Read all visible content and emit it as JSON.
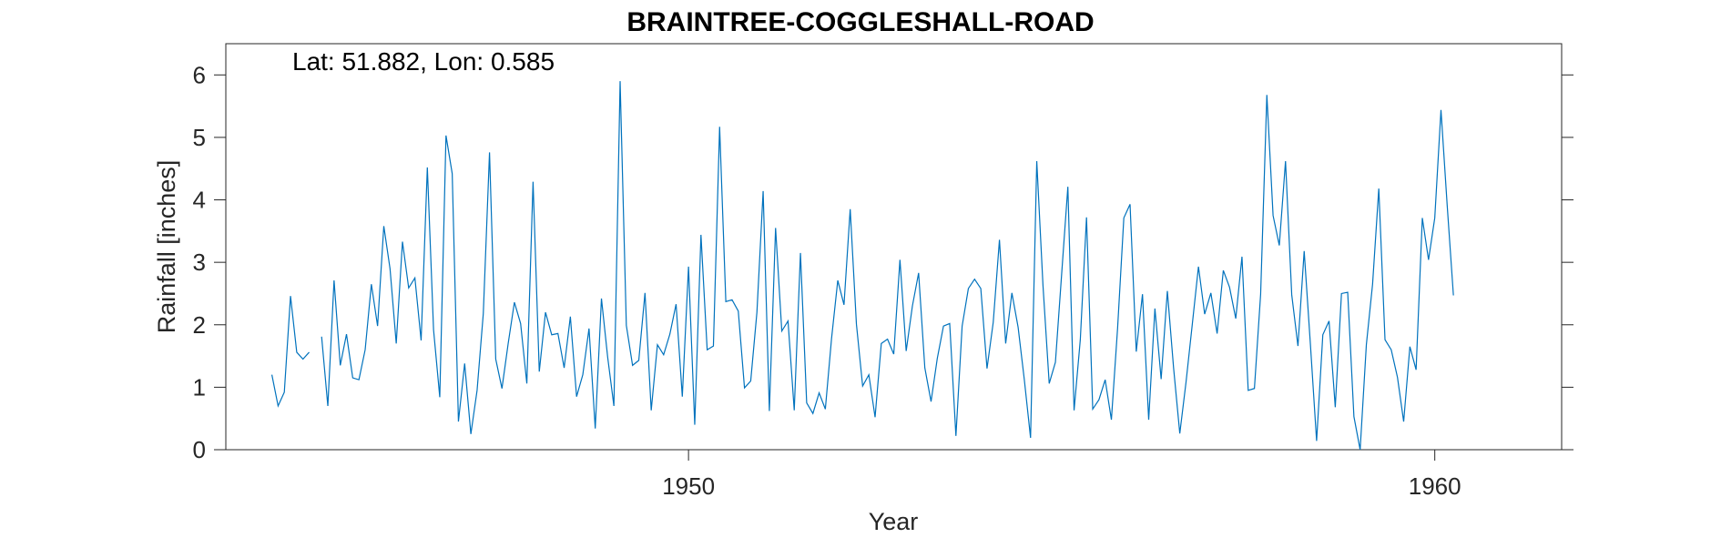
{
  "chart_data": {
    "type": "line",
    "title": "BRAINTREE-COGGLESHALL-ROAD",
    "annotation": "Lat: 51.882, Lon: 0.585",
    "xlabel": "Year",
    "ylabel": "Rainfall [inches]",
    "xlim": [
      1943.8,
      1961.7
    ],
    "ylim": [
      0,
      6.5
    ],
    "xticks": [
      1950,
      1960
    ],
    "yticks": [
      0,
      1,
      2,
      3,
      4,
      5,
      6
    ],
    "grid": false,
    "line_color": "#0072BD",
    "series": [
      {
        "start": 1944.417,
        "step": 0.08333,
        "values": [
          1.2,
          0.7,
          0.92,
          2.46,
          1.56,
          1.45,
          1.56,
          null,
          1.81,
          0.7,
          2.71,
          1.35,
          1.85,
          1.15,
          1.12,
          1.6,
          2.65,
          1.98,
          3.58,
          2.9,
          1.7,
          3.33,
          2.59,
          2.75,
          1.75,
          4.52,
          1.92,
          0.84,
          5.03,
          4.42,
          0.45,
          1.38,
          0.25,
          0.95,
          2.18,
          4.76,
          1.45,
          0.98,
          1.7,
          2.36,
          2.02,
          1.06,
          4.29,
          1.25,
          2.2,
          1.84,
          1.86,
          1.31,
          2.13,
          0.85,
          1.2,
          1.94,
          0.34,
          2.42,
          1.48,
          0.7,
          5.9,
          1.99,
          1.35,
          1.43,
          2.51,
          0.63,
          1.68,
          1.52,
          1.85,
          2.33,
          0.85,
          2.93,
          0.4,
          3.44,
          1.6,
          1.66,
          5.17,
          2.37,
          2.4,
          2.22,
          0.99,
          1.1,
          2.2,
          4.14,
          0.62,
          3.55,
          1.9,
          2.06,
          0.63,
          3.15,
          0.75,
          0.58,
          0.91,
          0.65,
          1.78,
          2.71,
          2.32,
          3.85,
          2.01,
          1.02,
          1.2,
          0.52,
          1.7,
          1.77,
          1.53,
          3.04,
          1.58,
          2.3,
          2.83,
          1.31,
          0.77,
          1.46,
          1.98,
          2.02,
          0.22,
          1.98,
          2.58,
          2.73,
          2.58,
          1.3,
          2.04,
          3.36,
          1.7,
          2.51,
          1.96,
          1.12,
          0.19,
          4.62,
          2.63,
          1.06,
          1.4,
          2.81,
          4.21,
          0.63,
          1.76,
          3.72,
          0.65,
          0.8,
          1.12,
          0.48,
          1.95,
          3.71,
          3.93,
          1.57,
          2.49,
          0.48,
          2.26,
          1.13,
          2.54,
          1.31,
          0.26,
          1.08,
          2.0,
          2.93,
          2.17,
          2.51,
          1.86,
          2.87,
          2.6,
          2.1,
          3.09,
          0.95,
          0.98,
          2.49,
          5.68,
          3.75,
          3.27,
          4.62,
          2.48,
          1.66,
          3.18,
          1.69,
          0.14,
          1.84,
          2.06,
          0.68,
          2.5,
          2.52,
          0.53,
          0.0,
          1.68,
          2.65,
          4.18,
          1.76,
          1.6,
          1.16,
          0.45,
          1.65,
          1.28,
          3.71,
          3.04,
          3.71,
          5.44,
          3.91,
          2.47
        ]
      }
    ]
  }
}
